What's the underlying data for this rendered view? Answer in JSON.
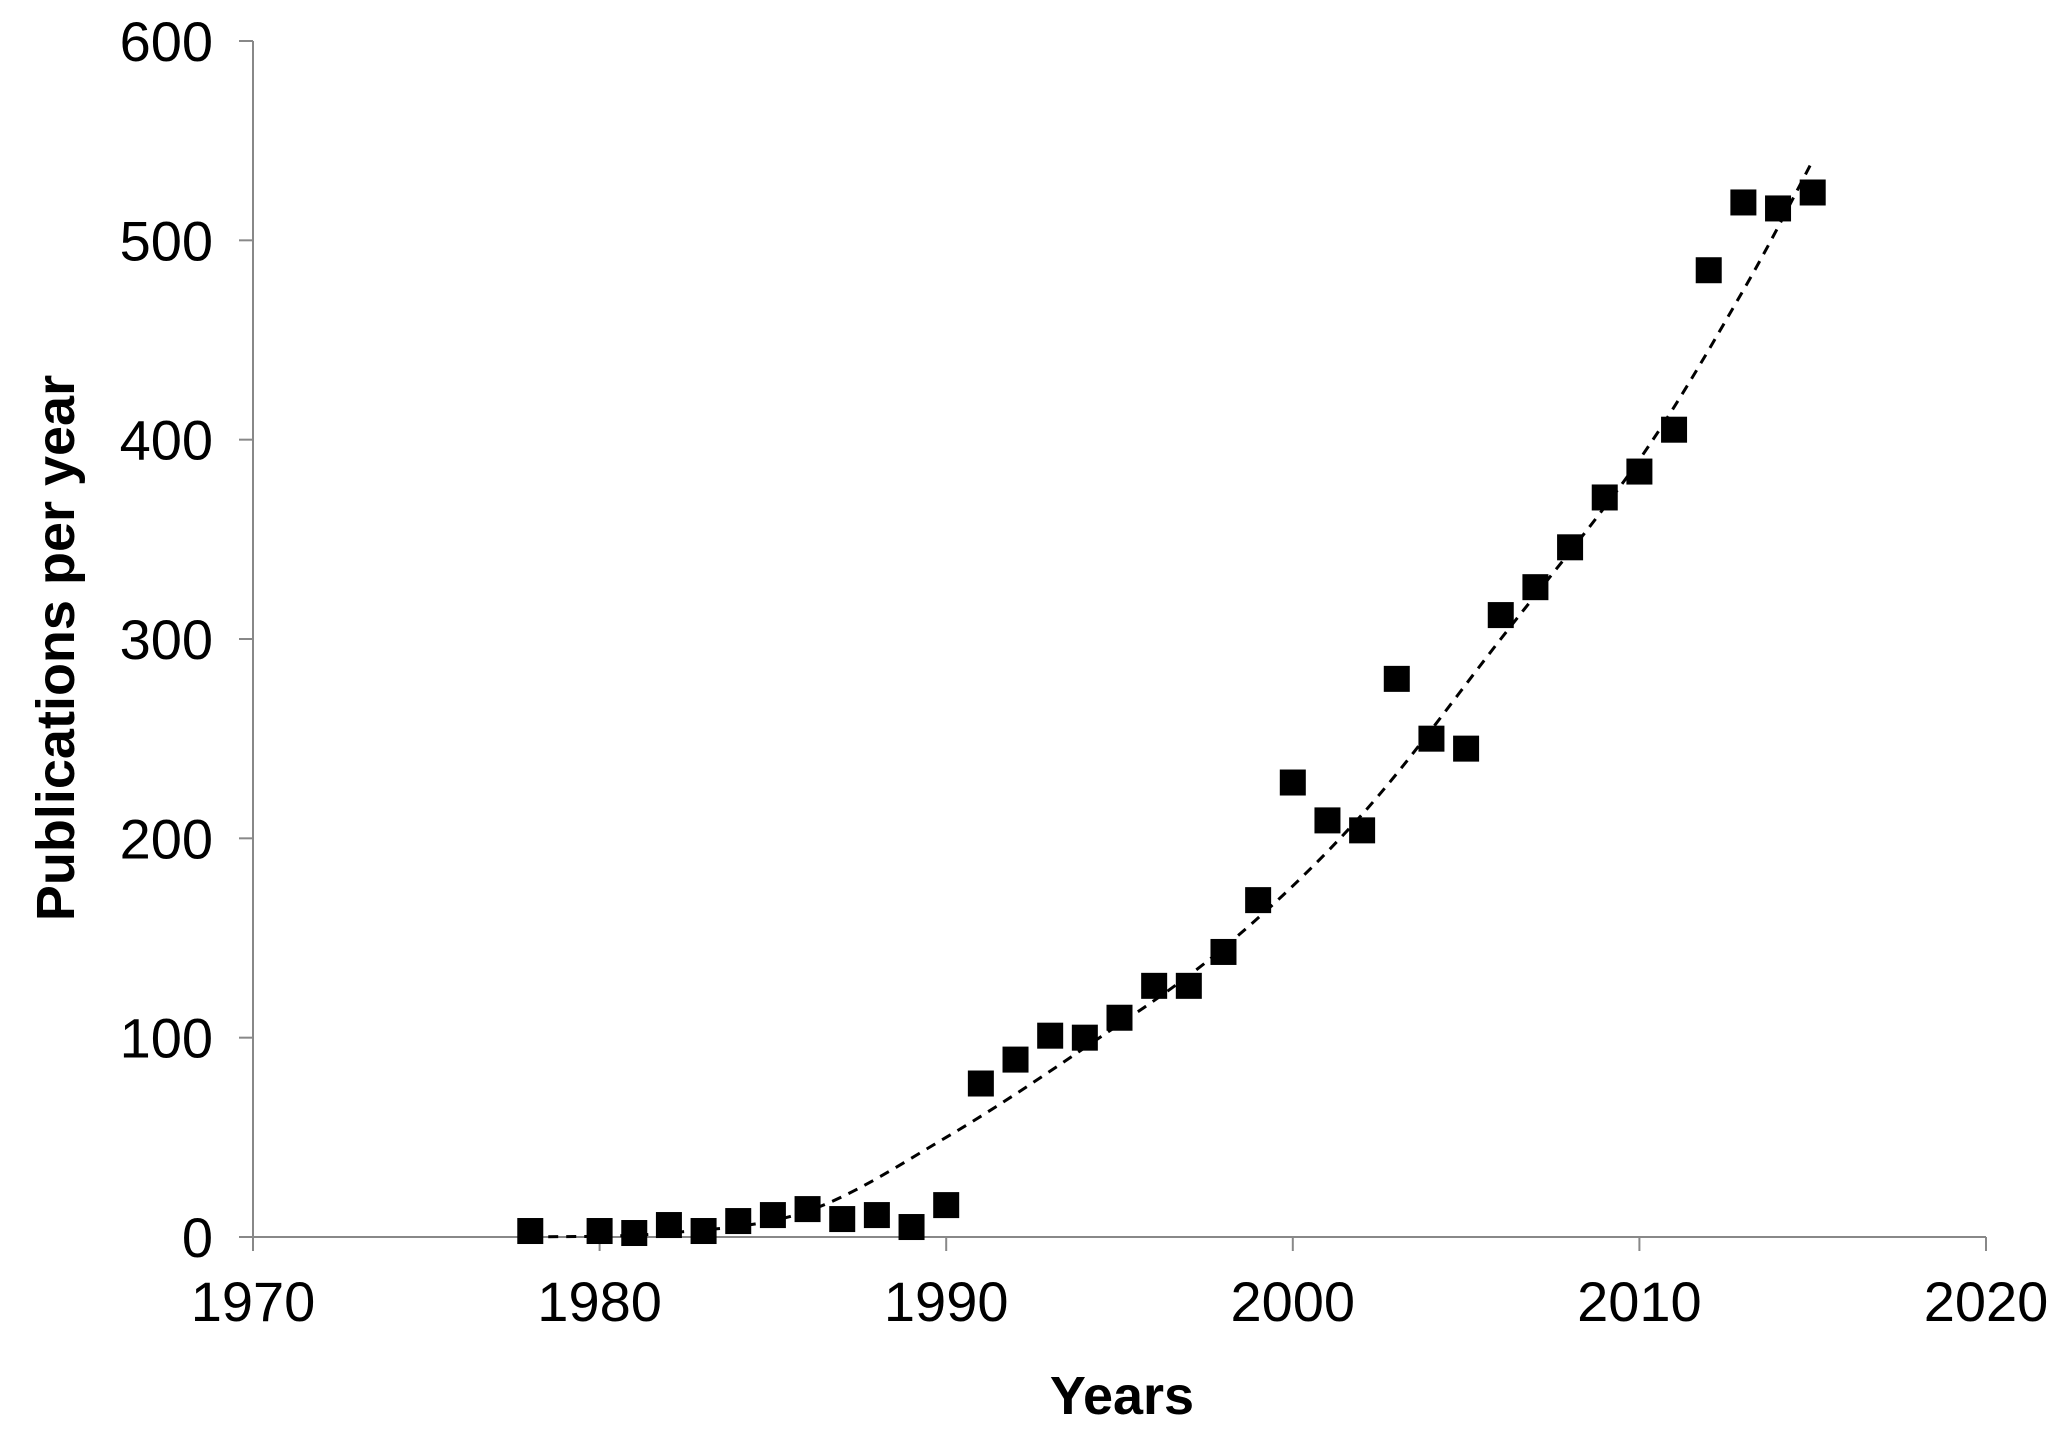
{
  "chart_data": {
    "type": "scatter",
    "xlabel": "Years",
    "ylabel": "Publications per year",
    "xlim": [
      1970,
      2020
    ],
    "ylim": [
      0,
      600
    ],
    "x_ticks": [
      1970,
      1980,
      1990,
      2000,
      2010,
      2020
    ],
    "y_ticks": [
      0,
      100,
      200,
      300,
      400,
      500,
      600
    ],
    "x_tick_labels": [
      "1970",
      "1980",
      "1990",
      "2000",
      "2010",
      "2020"
    ],
    "y_tick_labels": [
      "0",
      "100",
      "200",
      "300",
      "400",
      "500",
      "600"
    ],
    "grid": false,
    "legend": "none",
    "marker": "square",
    "marker_color": "#000000",
    "series": [
      {
        "points": [
          {
            "x": 1978,
            "y": 3
          },
          {
            "x": 1980,
            "y": 3
          },
          {
            "x": 1981,
            "y": 2
          },
          {
            "x": 1982,
            "y": 6
          },
          {
            "x": 1983,
            "y": 3
          },
          {
            "x": 1984,
            "y": 8
          },
          {
            "x": 1985,
            "y": 11
          },
          {
            "x": 1986,
            "y": 14
          },
          {
            "x": 1987,
            "y": 9
          },
          {
            "x": 1988,
            "y": 11
          },
          {
            "x": 1989,
            "y": 5
          },
          {
            "x": 1990,
            "y": 16
          },
          {
            "x": 1991,
            "y": 77
          },
          {
            "x": 1992,
            "y": 89
          },
          {
            "x": 1993,
            "y": 101
          },
          {
            "x": 1994,
            "y": 100
          },
          {
            "x": 1995,
            "y": 110
          },
          {
            "x": 1996,
            "y": 126
          },
          {
            "x": 1997,
            "y": 126
          },
          {
            "x": 1998,
            "y": 143
          },
          {
            "x": 1999,
            "y": 169
          },
          {
            "x": 2000,
            "y": 228
          },
          {
            "x": 2001,
            "y": 209
          },
          {
            "x": 2002,
            "y": 204
          },
          {
            "x": 2003,
            "y": 280
          },
          {
            "x": 2004,
            "y": 250
          },
          {
            "x": 2005,
            "y": 245
          },
          {
            "x": 2006,
            "y": 312
          },
          {
            "x": 2007,
            "y": 326
          },
          {
            "x": 2008,
            "y": 346
          },
          {
            "x": 2009,
            "y": 371
          },
          {
            "x": 2010,
            "y": 384
          },
          {
            "x": 2011,
            "y": 405
          },
          {
            "x": 2012,
            "y": 485
          },
          {
            "x": 2013,
            "y": 519
          },
          {
            "x": 2014,
            "y": 516
          },
          {
            "x": 2015,
            "y": 524
          }
        ]
      }
    ],
    "trendline": {
      "style": "dashed",
      "color": "#000000",
      "x_range": [
        1978,
        2015
      ],
      "points": [
        {
          "x": 1978,
          "y": 0
        },
        {
          "x": 1982,
          "y": 2
        },
        {
          "x": 1986,
          "y": 13
        },
        {
          "x": 1990,
          "y": 50
        },
        {
          "x": 1994,
          "y": 95
        },
        {
          "x": 1998,
          "y": 145
        },
        {
          "x": 2002,
          "y": 212
        },
        {
          "x": 2006,
          "y": 300
        },
        {
          "x": 2010,
          "y": 390
        },
        {
          "x": 2013,
          "y": 475
        },
        {
          "x": 2015,
          "y": 540
        }
      ]
    }
  }
}
